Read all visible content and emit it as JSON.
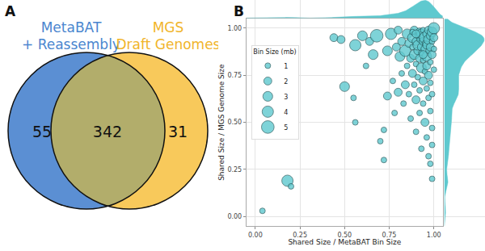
{
  "chart_data": [
    {
      "type": "venn",
      "panel_label": "A",
      "sets": [
        {
          "name": [
            "MetaBAT",
            "+ Reassembly"
          ],
          "color": "#5b8fd3",
          "only": 55
        },
        {
          "name": [
            "MGS",
            "Draft Genomes"
          ],
          "color": "#f8c95b",
          "only": 31
        }
      ],
      "overlap": 342,
      "overlap_color": "#b2ad6b"
    },
    {
      "type": "scatter",
      "panel_label": "B",
      "x_label": "Shared Size / MetaBAT Bin Size",
      "y_label": "Shared Size / MGS Genome Size",
      "xlim": [
        -0.05,
        1.05
      ],
      "ylim": [
        -0.05,
        1.05
      ],
      "xticks": [
        {
          "value": 0,
          "label": "0.00"
        },
        {
          "value": 0.25,
          "label": "0.25"
        },
        {
          "value": 0.5,
          "label": "0.50"
        },
        {
          "value": 0.75,
          "label": "0.75"
        },
        {
          "value": 1,
          "label": "1.00"
        }
      ],
      "yticks": [
        {
          "value": 0,
          "label": "0.00"
        },
        {
          "value": 0.25,
          "label": "0.25"
        },
        {
          "value": 0.5,
          "label": "0.50"
        },
        {
          "value": 0.75,
          "label": "0.75"
        },
        {
          "value": 1,
          "label": "1.00"
        }
      ],
      "grid": true,
      "color": "#5fc9cf",
      "legend": "upper left",
      "size_legend": {
        "title": "Bin Size (mb)",
        "sizes": [
          1,
          2,
          3,
          4,
          5
        ]
      },
      "x": [
        0.04,
        0.18,
        0.2,
        0.44,
        0.48,
        0.5,
        0.55,
        0.56,
        0.56,
        0.6,
        0.62,
        0.64,
        0.66,
        0.68,
        0.7,
        0.72,
        0.72,
        0.74,
        0.74,
        0.76,
        0.77,
        0.78,
        0.79,
        0.8,
        0.8,
        0.81,
        0.82,
        0.82,
        0.83,
        0.84,
        0.84,
        0.85,
        0.85,
        0.86,
        0.86,
        0.87,
        0.87,
        0.88,
        0.88,
        0.88,
        0.89,
        0.89,
        0.89,
        0.9,
        0.9,
        0.9,
        0.9,
        0.91,
        0.91,
        0.91,
        0.91,
        0.92,
        0.92,
        0.92,
        0.92,
        0.92,
        0.93,
        0.93,
        0.93,
        0.93,
        0.93,
        0.94,
        0.94,
        0.94,
        0.94,
        0.94,
        0.95,
        0.95,
        0.95,
        0.95,
        0.95,
        0.96,
        0.96,
        0.96,
        0.96,
        0.96,
        0.96,
        0.97,
        0.97,
        0.97,
        0.97,
        0.97,
        0.97,
        0.98,
        0.98,
        0.98,
        0.98,
        0.98,
        0.98,
        0.99,
        0.99,
        0.99,
        0.99,
        0.99,
        0.99,
        1.0,
        1.0,
        1.0,
        1.0,
        0.99,
        0.88,
        0.9,
        0.94
      ],
      "y": [
        0.03,
        0.19,
        0.16,
        0.95,
        0.94,
        0.69,
        0.63,
        0.91,
        0.5,
        0.96,
        0.8,
        0.93,
        0.86,
        0.96,
        0.4,
        0.3,
        0.46,
        0.64,
        0.88,
        0.97,
        0.72,
        0.55,
        0.9,
        0.66,
        0.99,
        0.85,
        0.76,
        0.93,
        0.6,
        0.7,
        0.88,
        0.97,
        0.8,
        0.92,
        0.65,
        0.84,
        0.52,
        0.95,
        0.76,
        0.9,
        0.99,
        0.7,
        0.86,
        0.93,
        0.81,
        0.62,
        0.45,
        0.96,
        0.88,
        0.74,
        0.91,
        0.98,
        0.84,
        0.67,
        0.94,
        0.55,
        0.9,
        0.79,
        0.97,
        0.36,
        0.87,
        0.93,
        0.72,
        0.99,
        0.83,
        0.6,
        0.95,
        0.89,
        0.77,
        0.5,
        0.92,
        0.97,
        0.85,
        0.68,
        0.42,
        0.91,
        0.8,
        0.94,
        0.88,
        0.75,
        0.63,
        0.32,
        0.99,
        0.96,
        0.9,
        0.82,
        0.56,
        0.28,
        0.71,
        0.98,
        0.93,
        0.86,
        0.47,
        0.2,
        0.65,
        1.0,
        0.95,
        0.89,
        0.78,
        0.38,
        0.98,
        0.97,
        0.86
      ],
      "sizes": [
        1,
        4,
        1,
        2,
        2,
        3,
        1,
        4,
        1,
        3,
        1,
        2,
        3,
        5,
        1,
        1,
        1,
        2,
        3,
        4,
        1,
        1,
        2,
        2,
        2,
        3,
        1,
        2,
        1,
        2,
        4,
        3,
        1,
        2,
        1,
        2,
        1,
        3,
        2,
        1,
        2,
        1,
        3,
        2,
        1,
        2,
        1,
        1,
        2,
        1,
        3,
        2,
        2,
        1,
        1,
        1,
        2,
        3,
        3,
        1,
        1,
        2,
        2,
        1,
        1,
        1,
        4,
        2,
        1,
        2,
        1,
        2,
        3,
        1,
        1,
        2,
        2,
        3,
        1,
        2,
        1,
        1,
        2,
        2,
        2,
        1,
        1,
        1,
        1,
        3,
        1,
        2,
        1,
        1,
        1,
        4,
        2,
        1,
        1,
        1,
        1,
        2,
        2
      ]
    }
  ]
}
